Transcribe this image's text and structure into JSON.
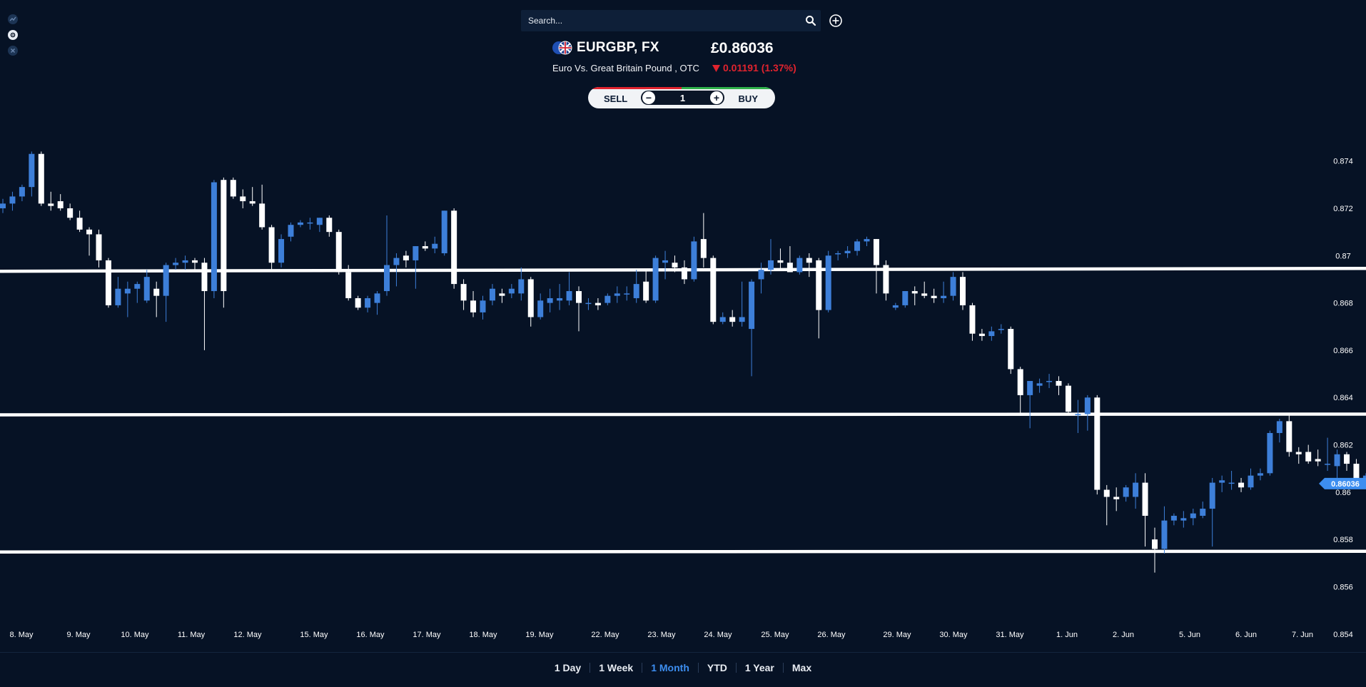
{
  "search": {
    "placeholder": "Search..."
  },
  "instrument": {
    "symbol": "EURGBP, FX",
    "name": "Euro Vs. Great Britain Pound , OTC",
    "price": "£0.86036",
    "change": "0.01191 (1.37%)",
    "change_direction": "down"
  },
  "trade": {
    "sell_label": "SELL",
    "buy_label": "BUY",
    "quantity": "1",
    "minus": "−",
    "plus": "+"
  },
  "ranges": [
    {
      "label": "1 Day",
      "active": false
    },
    {
      "label": "1 Week",
      "active": false
    },
    {
      "label": "1 Month",
      "active": true
    },
    {
      "label": "YTD",
      "active": false
    },
    {
      "label": "1 Year",
      "active": false
    },
    {
      "label": "Max",
      "active": false
    }
  ],
  "colors": {
    "background": "#061225",
    "up_candle": "#3d7fd9",
    "down_candle": "#ffffff",
    "accent": "#3d8ef0",
    "negative": "#e0232e",
    "positive": "#2fb14a"
  },
  "chart_data": {
    "type": "candlestick",
    "ylim": [
      0.8533,
      0.8758
    ],
    "y_ticks": [
      "0.874",
      "0.872",
      "0.87",
      "0.868",
      "0.866",
      "0.864",
      "0.862",
      "0.86",
      "0.858",
      "0.856",
      "0.854"
    ],
    "x_ticks": [
      "8. May",
      "9. May",
      "10. May",
      "11. May",
      "12. May",
      "15. May",
      "16. May",
      "17. May",
      "18. May",
      "19. May",
      "22. May",
      "23. May",
      "24. May",
      "25. May",
      "26. May",
      "29. May",
      "30. May",
      "31. May",
      "1. Jun",
      "2. Jun",
      "5. Jun",
      "6. Jun",
      "7. Jun"
    ],
    "current_price": "0.86036",
    "horizontal_lines": [
      0.8694,
      0.8633,
      0.8575
    ],
    "candles": [
      [
        0.872,
        0.8724,
        0.8718,
        0.8722
      ],
      [
        0.8722,
        0.8727,
        0.8719,
        0.8725
      ],
      [
        0.8725,
        0.873,
        0.8723,
        0.8729
      ],
      [
        0.8729,
        0.8744,
        0.8725,
        0.8743
      ],
      [
        0.8743,
        0.8744,
        0.8721,
        0.8722
      ],
      [
        0.8722,
        0.8727,
        0.8719,
        0.8721
      ],
      [
        0.8723,
        0.8726,
        0.8719,
        0.872
      ],
      [
        0.872,
        0.8722,
        0.8715,
        0.8716
      ],
      [
        0.8716,
        0.8719,
        0.871,
        0.8711
      ],
      [
        0.8711,
        0.8712,
        0.87,
        0.8709
      ],
      [
        0.8709,
        0.8711,
        0.8695,
        0.8698
      ],
      [
        0.8698,
        0.8699,
        0.8678,
        0.8679
      ],
      [
        0.8679,
        0.8691,
        0.8678,
        0.8686
      ],
      [
        0.8684,
        0.8689,
        0.8674,
        0.8686
      ],
      [
        0.8686,
        0.8689,
        0.868,
        0.8688
      ],
      [
        0.8681,
        0.8694,
        0.868,
        0.8691
      ],
      [
        0.8686,
        0.8689,
        0.8674,
        0.8683
      ],
      [
        0.8683,
        0.8697,
        0.8672,
        0.8696
      ],
      [
        0.8696,
        0.8699,
        0.8694,
        0.8697
      ],
      [
        0.8697,
        0.87,
        0.8694,
        0.8698
      ],
      [
        0.8698,
        0.8699,
        0.8694,
        0.8697
      ],
      [
        0.8697,
        0.8699,
        0.866,
        0.8685
      ],
      [
        0.8685,
        0.8732,
        0.8682,
        0.8731
      ],
      [
        0.8732,
        0.8733,
        0.8678,
        0.8685
      ],
      [
        0.8732,
        0.8733,
        0.8724,
        0.8725
      ],
      [
        0.8725,
        0.8728,
        0.872,
        0.8723
      ],
      [
        0.8723,
        0.8729,
        0.8721,
        0.8722
      ],
      [
        0.8722,
        0.873,
        0.8711,
        0.8712
      ],
      [
        0.8712,
        0.8713,
        0.8694,
        0.8697
      ],
      [
        0.8697,
        0.8709,
        0.8695,
        0.8707
      ],
      [
        0.8708,
        0.8714,
        0.8706,
        0.8713
      ],
      [
        0.8713,
        0.8715,
        0.8712,
        0.8714
      ],
      [
        0.8714,
        0.8716,
        0.8711,
        0.8714
      ],
      [
        0.8713,
        0.8716,
        0.871,
        0.8716
      ],
      [
        0.8716,
        0.8717,
        0.8708,
        0.871
      ],
      [
        0.871,
        0.8711,
        0.8692,
        0.8693
      ],
      [
        0.8693,
        0.8696,
        0.8681,
        0.8682
      ],
      [
        0.8682,
        0.8683,
        0.8677,
        0.8678
      ],
      [
        0.8678,
        0.8683,
        0.8676,
        0.8682
      ],
      [
        0.868,
        0.8685,
        0.8675,
        0.8684
      ],
      [
        0.8685,
        0.8717,
        0.8683,
        0.8696
      ],
      [
        0.8696,
        0.8701,
        0.8687,
        0.8699
      ],
      [
        0.87,
        0.8702,
        0.8695,
        0.8698
      ],
      [
        0.8698,
        0.8704,
        0.8686,
        0.8704
      ],
      [
        0.8704,
        0.8706,
        0.8702,
        0.8703
      ],
      [
        0.8703,
        0.8708,
        0.8701,
        0.8705
      ],
      [
        0.8701,
        0.8719,
        0.87,
        0.8719
      ],
      [
        0.8719,
        0.872,
        0.8686,
        0.8688
      ],
      [
        0.8688,
        0.869,
        0.8677,
        0.8681
      ],
      [
        0.8681,
        0.8685,
        0.8674,
        0.8676
      ],
      [
        0.8676,
        0.8683,
        0.8673,
        0.8681
      ],
      [
        0.8681,
        0.8688,
        0.8679,
        0.8686
      ],
      [
        0.8684,
        0.8686,
        0.868,
        0.8683
      ],
      [
        0.8684,
        0.8688,
        0.8682,
        0.8686
      ],
      [
        0.8684,
        0.8695,
        0.8681,
        0.869
      ],
      [
        0.869,
        0.8691,
        0.867,
        0.8674
      ],
      [
        0.8674,
        0.8684,
        0.8673,
        0.8681
      ],
      [
        0.868,
        0.8686,
        0.8676,
        0.8682
      ],
      [
        0.8681,
        0.8688,
        0.8677,
        0.8682
      ],
      [
        0.8681,
        0.8693,
        0.8679,
        0.8685
      ],
      [
        0.8685,
        0.8687,
        0.8668,
        0.868
      ],
      [
        0.868,
        0.8682,
        0.8677,
        0.868
      ],
      [
        0.868,
        0.8682,
        0.8677,
        0.8679
      ],
      [
        0.868,
        0.8684,
        0.8679,
        0.8683
      ],
      [
        0.8683,
        0.8687,
        0.868,
        0.8684
      ],
      [
        0.8684,
        0.8687,
        0.8681,
        0.8684
      ],
      [
        0.8682,
        0.8694,
        0.868,
        0.8688
      ],
      [
        0.8689,
        0.8694,
        0.868,
        0.8681
      ],
      [
        0.8681,
        0.87,
        0.868,
        0.8699
      ],
      [
        0.8697,
        0.8702,
        0.869,
        0.8698
      ],
      [
        0.8697,
        0.87,
        0.8693,
        0.8695
      ],
      [
        0.8695,
        0.8698,
        0.8688,
        0.869
      ],
      [
        0.869,
        0.8708,
        0.8689,
        0.8706
      ],
      [
        0.8707,
        0.8718,
        0.8695,
        0.8699
      ],
      [
        0.8699,
        0.87,
        0.8671,
        0.8672
      ],
      [
        0.8672,
        0.8676,
        0.8671,
        0.8674
      ],
      [
        0.8674,
        0.8677,
        0.867,
        0.8672
      ],
      [
        0.8672,
        0.8689,
        0.867,
        0.8674
      ],
      [
        0.8669,
        0.869,
        0.8649,
        0.8689
      ],
      [
        0.869,
        0.8697,
        0.8684,
        0.8694
      ],
      [
        0.8694,
        0.8707,
        0.8692,
        0.8698
      ],
      [
        0.8698,
        0.8703,
        0.8694,
        0.8697
      ],
      [
        0.8697,
        0.8704,
        0.8693,
        0.8693
      ],
      [
        0.8693,
        0.87,
        0.8692,
        0.8699
      ],
      [
        0.8699,
        0.8701,
        0.8691,
        0.8697
      ],
      [
        0.8698,
        0.8699,
        0.8665,
        0.8677
      ],
      [
        0.8677,
        0.8702,
        0.8676,
        0.87
      ],
      [
        0.8701,
        0.8702,
        0.8698,
        0.8701
      ],
      [
        0.8701,
        0.8704,
        0.8699,
        0.8702
      ],
      [
        0.8702,
        0.8707,
        0.87,
        0.8706
      ],
      [
        0.8706,
        0.8708,
        0.8704,
        0.8707
      ],
      [
        0.8707,
        0.8707,
        0.8684,
        0.8696
      ],
      [
        0.8696,
        0.8698,
        0.8681,
        0.8684
      ],
      [
        0.8678,
        0.868,
        0.8677,
        0.8679
      ],
      [
        0.8679,
        0.8685,
        0.8678,
        0.8685
      ],
      [
        0.8685,
        0.8687,
        0.8679,
        0.8684
      ],
      [
        0.8684,
        0.8689,
        0.8682,
        0.8683
      ],
      [
        0.8683,
        0.8686,
        0.868,
        0.8682
      ],
      [
        0.8682,
        0.8689,
        0.868,
        0.8683
      ],
      [
        0.8683,
        0.8693,
        0.8681,
        0.8691
      ],
      [
        0.8691,
        0.8693,
        0.8677,
        0.8679
      ],
      [
        0.8679,
        0.868,
        0.8664,
        0.8667
      ],
      [
        0.8667,
        0.8669,
        0.8664,
        0.8666
      ],
      [
        0.8666,
        0.867,
        0.8664,
        0.8668
      ],
      [
        0.8669,
        0.8671,
        0.8667,
        0.8669
      ],
      [
        0.8669,
        0.867,
        0.865,
        0.8652
      ],
      [
        0.8652,
        0.8653,
        0.8633,
        0.8641
      ],
      [
        0.8641,
        0.8645,
        0.8627,
        0.8647
      ],
      [
        0.8645,
        0.8648,
        0.8642,
        0.8646
      ],
      [
        0.8647,
        0.865,
        0.8644,
        0.8647
      ],
      [
        0.8647,
        0.8649,
        0.8641,
        0.8645
      ],
      [
        0.8645,
        0.8646,
        0.8633,
        0.8634
      ],
      [
        0.8633,
        0.8639,
        0.8625,
        0.8633
      ],
      [
        0.8633,
        0.8641,
        0.8626,
        0.864
      ],
      [
        0.864,
        0.8641,
        0.8599,
        0.8601
      ],
      [
        0.8601,
        0.8603,
        0.8586,
        0.8598
      ],
      [
        0.8598,
        0.8602,
        0.8592,
        0.8597
      ],
      [
        0.8598,
        0.8603,
        0.8596,
        0.8602
      ],
      [
        0.8598,
        0.8608,
        0.8593,
        0.8604
      ],
      [
        0.8604,
        0.8608,
        0.8577,
        0.859
      ],
      [
        0.858,
        0.8585,
        0.8566,
        0.8576
      ],
      [
        0.8576,
        0.8594,
        0.8574,
        0.8588
      ],
      [
        0.8588,
        0.8591,
        0.8586,
        0.859
      ],
      [
        0.8588,
        0.8592,
        0.8585,
        0.8589
      ],
      [
        0.8589,
        0.8593,
        0.8586,
        0.8591
      ],
      [
        0.859,
        0.8596,
        0.8589,
        0.8593
      ],
      [
        0.8593,
        0.8606,
        0.8577,
        0.8604
      ],
      [
        0.8604,
        0.8607,
        0.86,
        0.8605
      ],
      [
        0.8604,
        0.8609,
        0.8601,
        0.8604
      ],
      [
        0.8604,
        0.8606,
        0.86,
        0.8602
      ],
      [
        0.8602,
        0.861,
        0.8601,
        0.8607
      ],
      [
        0.8607,
        0.861,
        0.8605,
        0.8608
      ],
      [
        0.8608,
        0.8626,
        0.8607,
        0.8625
      ],
      [
        0.8625,
        0.8631,
        0.8621,
        0.863
      ],
      [
        0.863,
        0.8633,
        0.8615,
        0.8617
      ],
      [
        0.8617,
        0.8619,
        0.8612,
        0.8616
      ],
      [
        0.8617,
        0.862,
        0.8612,
        0.8613
      ],
      [
        0.8614,
        0.8618,
        0.8611,
        0.8613
      ],
      [
        0.8612,
        0.8623,
        0.8609,
        0.8612
      ],
      [
        0.8611,
        0.8618,
        0.8606,
        0.8616
      ],
      [
        0.8616,
        0.8617,
        0.8609,
        0.8612
      ],
      [
        0.8612,
        0.8614,
        0.8602,
        0.8605
      ],
      [
        0.8605,
        0.8608,
        0.8604,
        0.8607
      ],
      [
        0.8607,
        0.8609,
        0.8603,
        0.8606
      ],
      [
        0.8606,
        0.8607,
        0.8603,
        0.8604
      ]
    ]
  }
}
